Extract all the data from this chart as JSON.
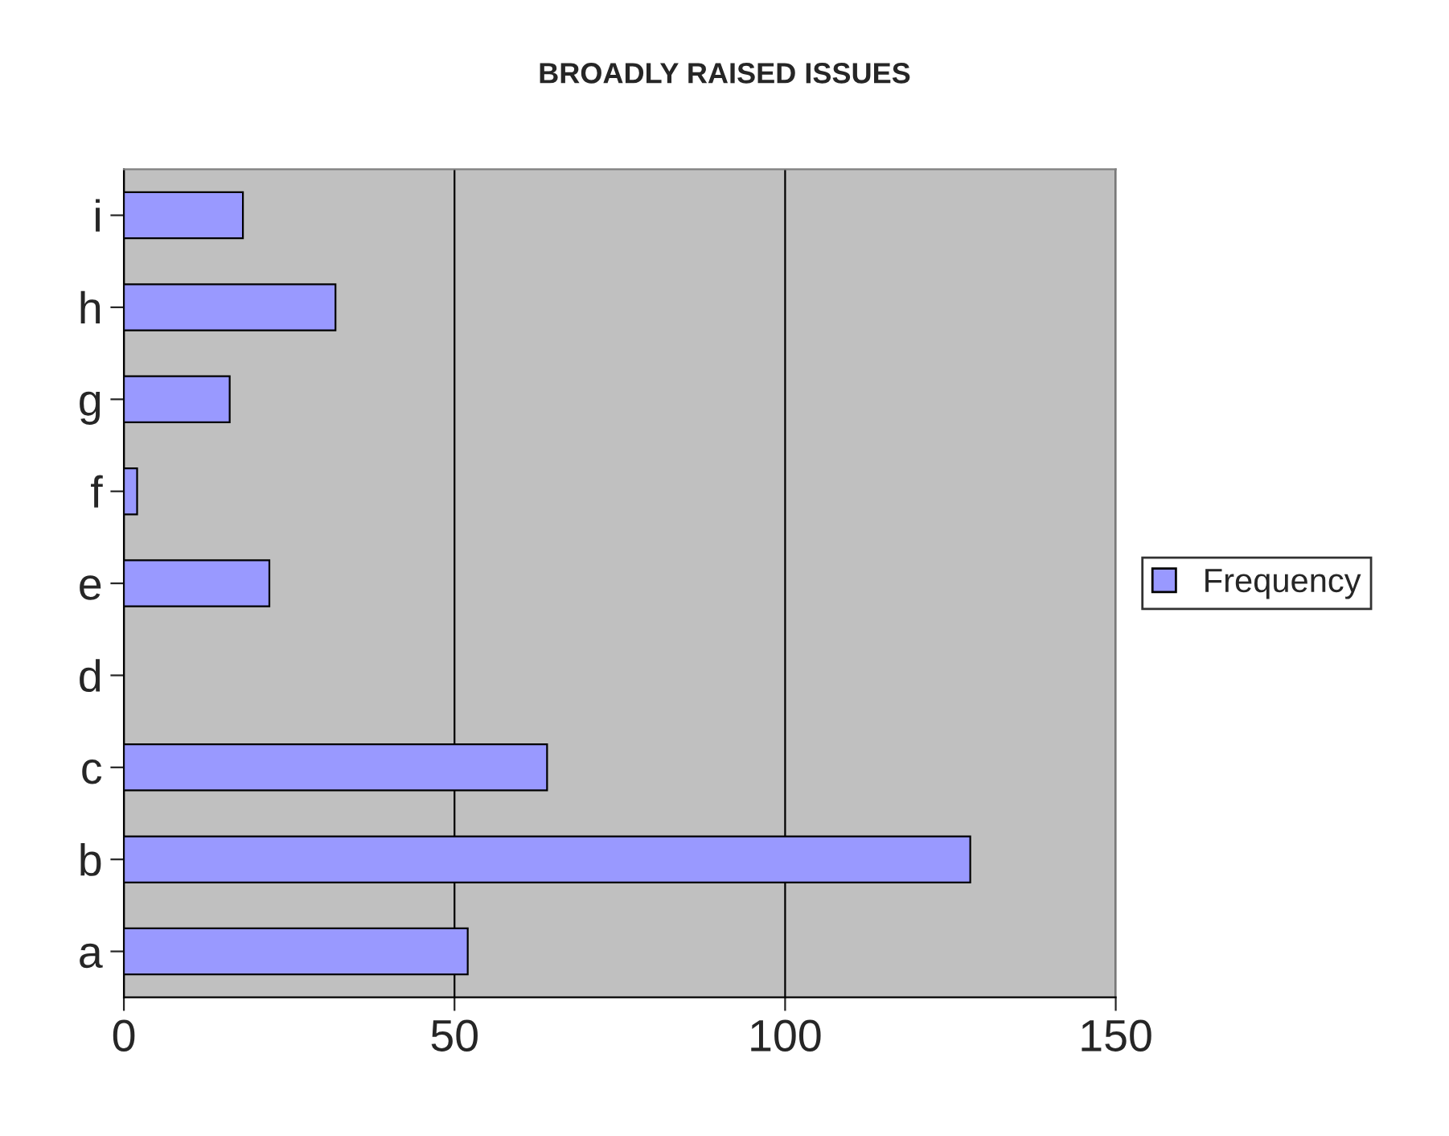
{
  "chart_data": {
    "type": "bar",
    "orientation": "horizontal",
    "title": "BROADLY RAISED ISSUES",
    "categories": [
      "i",
      "h",
      "g",
      "f",
      "e",
      "d",
      "c",
      "b",
      "a"
    ],
    "series": [
      {
        "name": "Frequency",
        "color": "#9999ff",
        "values": [
          18,
          32,
          16,
          2,
          22,
          0,
          64,
          128,
          52
        ]
      }
    ],
    "xlim": [
      0,
      150
    ],
    "xticks": [
      0,
      50,
      100,
      150
    ],
    "grid": "x",
    "legend": "right"
  }
}
